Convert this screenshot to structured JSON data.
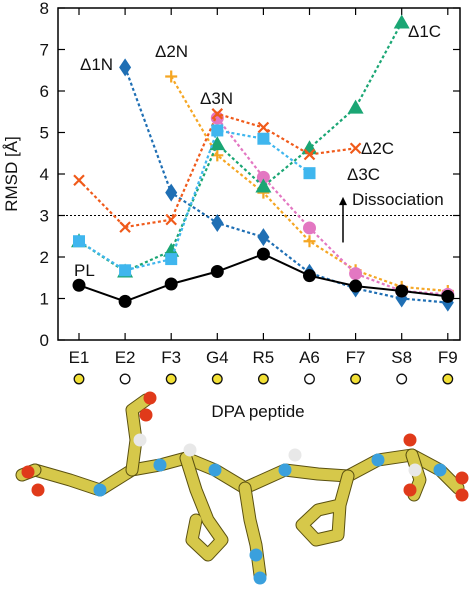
{
  "chart_data": {
    "type": "line",
    "title": "",
    "xlabel": "DPA peptide",
    "ylabel": "RMSD [Å]",
    "categories": [
      "E1",
      "E2",
      "F3",
      "G4",
      "R5",
      "A6",
      "F7",
      "S8",
      "F9"
    ],
    "category_markers": [
      "filled",
      "open",
      "filled",
      "filled",
      "filled",
      "open",
      "filled",
      "open",
      "filled"
    ],
    "ylim": [
      0,
      8
    ],
    "yticks": [
      0,
      1,
      2,
      3,
      4,
      5,
      6,
      7,
      8
    ],
    "grid": false,
    "threshold": {
      "value": 3.0,
      "label": "Dissociation"
    },
    "series": [
      {
        "name": "PL",
        "color": "#000000",
        "marker": "circle",
        "dashed": false,
        "values": [
          1.32,
          0.93,
          1.35,
          1.65,
          2.07,
          1.55,
          1.3,
          1.18,
          1.05
        ]
      },
      {
        "name": "Δ1N",
        "color": "#1f6fb4",
        "marker": "diamond",
        "dashed": true,
        "values": [
          null,
          6.57,
          3.55,
          2.82,
          2.48,
          1.62,
          1.24,
          1.0,
          0.9
        ]
      },
      {
        "name": "Δ2N",
        "color": "#f5a623",
        "marker": "plus",
        "dashed": true,
        "values": [
          null,
          null,
          6.35,
          4.45,
          3.55,
          2.38,
          1.68,
          1.28,
          1.18
        ]
      },
      {
        "name": "Δ3N",
        "color": "#e377c2",
        "marker": "circle",
        "dashed": true,
        "values": [
          null,
          null,
          null,
          5.35,
          3.92,
          2.7,
          1.6,
          1.18,
          1.1
        ]
      },
      {
        "name": "Δ1C",
        "color": "#1aa674",
        "marker": "triangle",
        "dashed": true,
        "values": [
          2.38,
          1.65,
          2.15,
          4.72,
          3.7,
          4.62,
          5.6,
          7.65,
          null
        ]
      },
      {
        "name": "Δ2C",
        "color": "#f05a1a",
        "marker": "cross",
        "dashed": true,
        "values": [
          3.85,
          2.72,
          2.9,
          5.45,
          5.12,
          4.47,
          4.62,
          null,
          null
        ]
      },
      {
        "name": "Δ3C",
        "color": "#3fb6ee",
        "marker": "square",
        "dashed": true,
        "values": [
          2.38,
          1.68,
          1.95,
          5.05,
          4.85,
          4.02,
          null,
          null,
          null
        ]
      }
    ]
  },
  "colors": {
    "peptide_carbon": "#d6c84a",
    "peptide_nitrogen": "#3aa0dd",
    "peptide_oxygen": "#e03a1a",
    "peptide_hydrogen": "#e8e8e8"
  }
}
